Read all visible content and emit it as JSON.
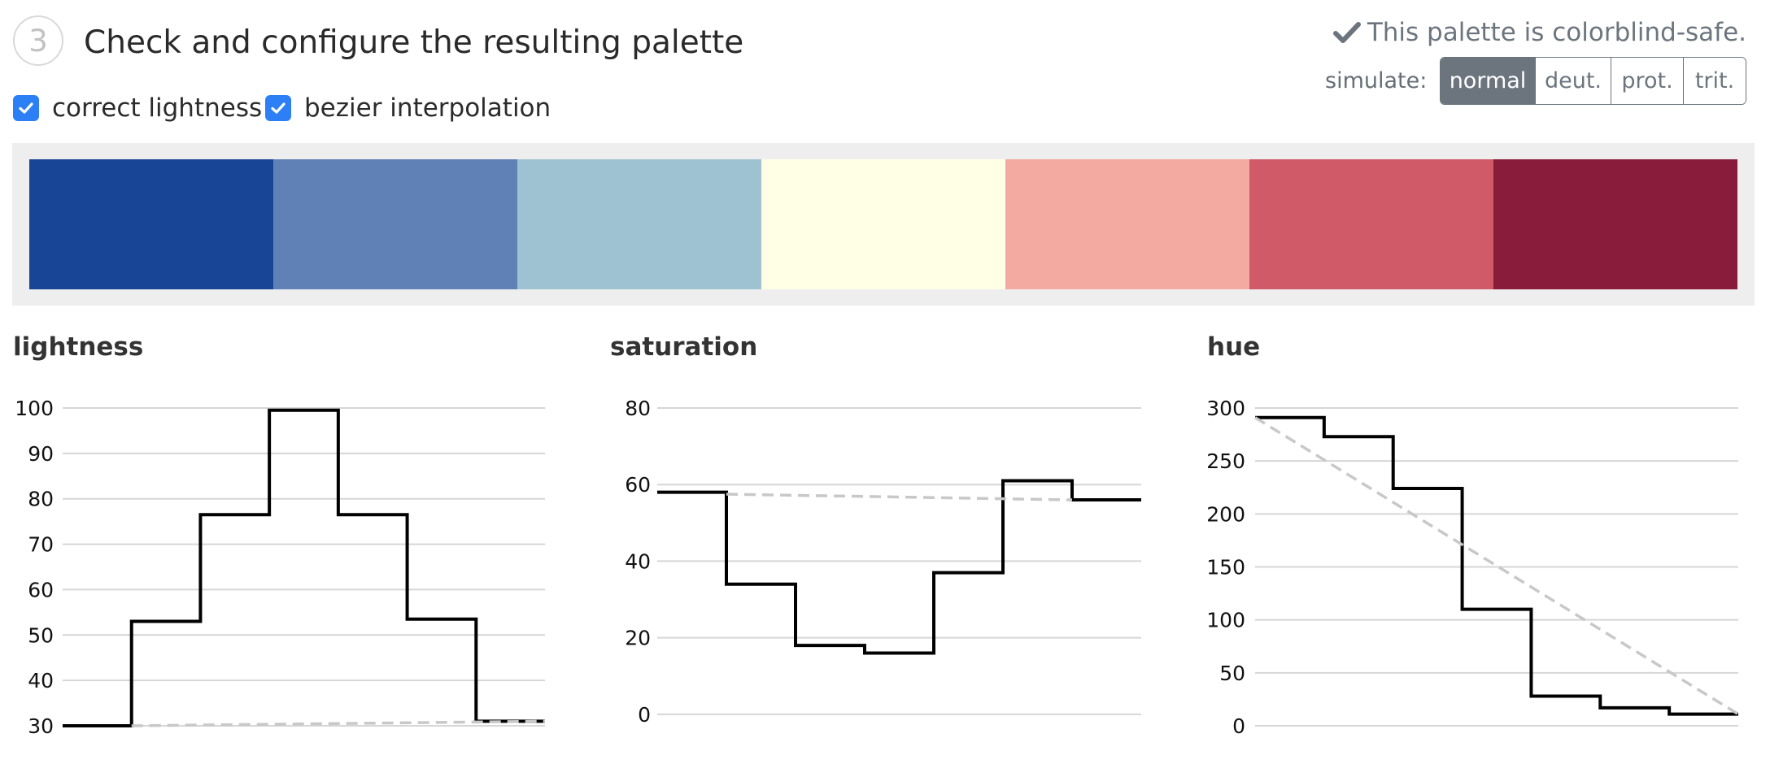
{
  "step": {
    "number": "3",
    "title": "Check and configure the resulting palette"
  },
  "options": [
    {
      "label": "correct lightness",
      "checked": true
    },
    {
      "label": "bezier interpolation",
      "checked": true
    }
  ],
  "status": {
    "icon": "check-icon",
    "text": "This palette is colorblind-safe."
  },
  "simulate": {
    "label": "simulate:",
    "buttons": [
      "normal",
      "deut.",
      "prot.",
      "trit."
    ],
    "active": "normal"
  },
  "colors": {
    "accent": "#2d7ff5",
    "active_button": "#6c757d",
    "line": "#000000",
    "reference_line": "#c8c8c8"
  },
  "palette": [
    "#194597",
    "#6081b5",
    "#9fc2d2",
    "#ffffe6",
    "#f2aaa1",
    "#d05a68",
    "#881c3a"
  ],
  "chart_data": [
    {
      "type": "line",
      "title": "lightness",
      "x": [
        0,
        1,
        2,
        3,
        4,
        5,
        6
      ],
      "series": [
        {
          "values": [
            30,
            53,
            76.5,
            99.5,
            76.5,
            53.5,
            31
          ]
        },
        {
          "values": [
            30,
            30.17,
            30.33,
            30.5,
            30.67,
            30.83,
            31
          ],
          "style": "dashed"
        }
      ],
      "ylim": [
        30,
        100
      ],
      "yticks": [
        30,
        40,
        50,
        60,
        70,
        80,
        90,
        100
      ],
      "grid": true
    },
    {
      "type": "line",
      "title": "saturation",
      "x": [
        0,
        1,
        2,
        3,
        4,
        5,
        6
      ],
      "series": [
        {
          "values": [
            58,
            34,
            18,
            16,
            37,
            61,
            56
          ]
        },
        {
          "values": [
            57.5,
            57.2,
            56.9,
            56.6,
            56.3,
            56.0
          ],
          "x": [
            1,
            2,
            3,
            4,
            5,
            6
          ],
          "style": "dashed"
        }
      ],
      "ylim": [
        -3,
        80
      ],
      "yticks": [
        0,
        20,
        40,
        60,
        80
      ],
      "grid": true
    },
    {
      "type": "line",
      "title": "hue",
      "x": [
        0,
        1,
        2,
        3,
        4,
        5,
        6
      ],
      "series": [
        {
          "values": [
            291,
            273,
            224,
            110,
            28,
            17,
            11
          ]
        },
        {
          "values": [
            291,
            11
          ],
          "x": [
            0,
            7
          ],
          "style": "dashed"
        }
      ],
      "ylim": [
        0,
        300
      ],
      "yticks": [
        0,
        50,
        100,
        150,
        200,
        250,
        300
      ],
      "grid": true
    }
  ]
}
